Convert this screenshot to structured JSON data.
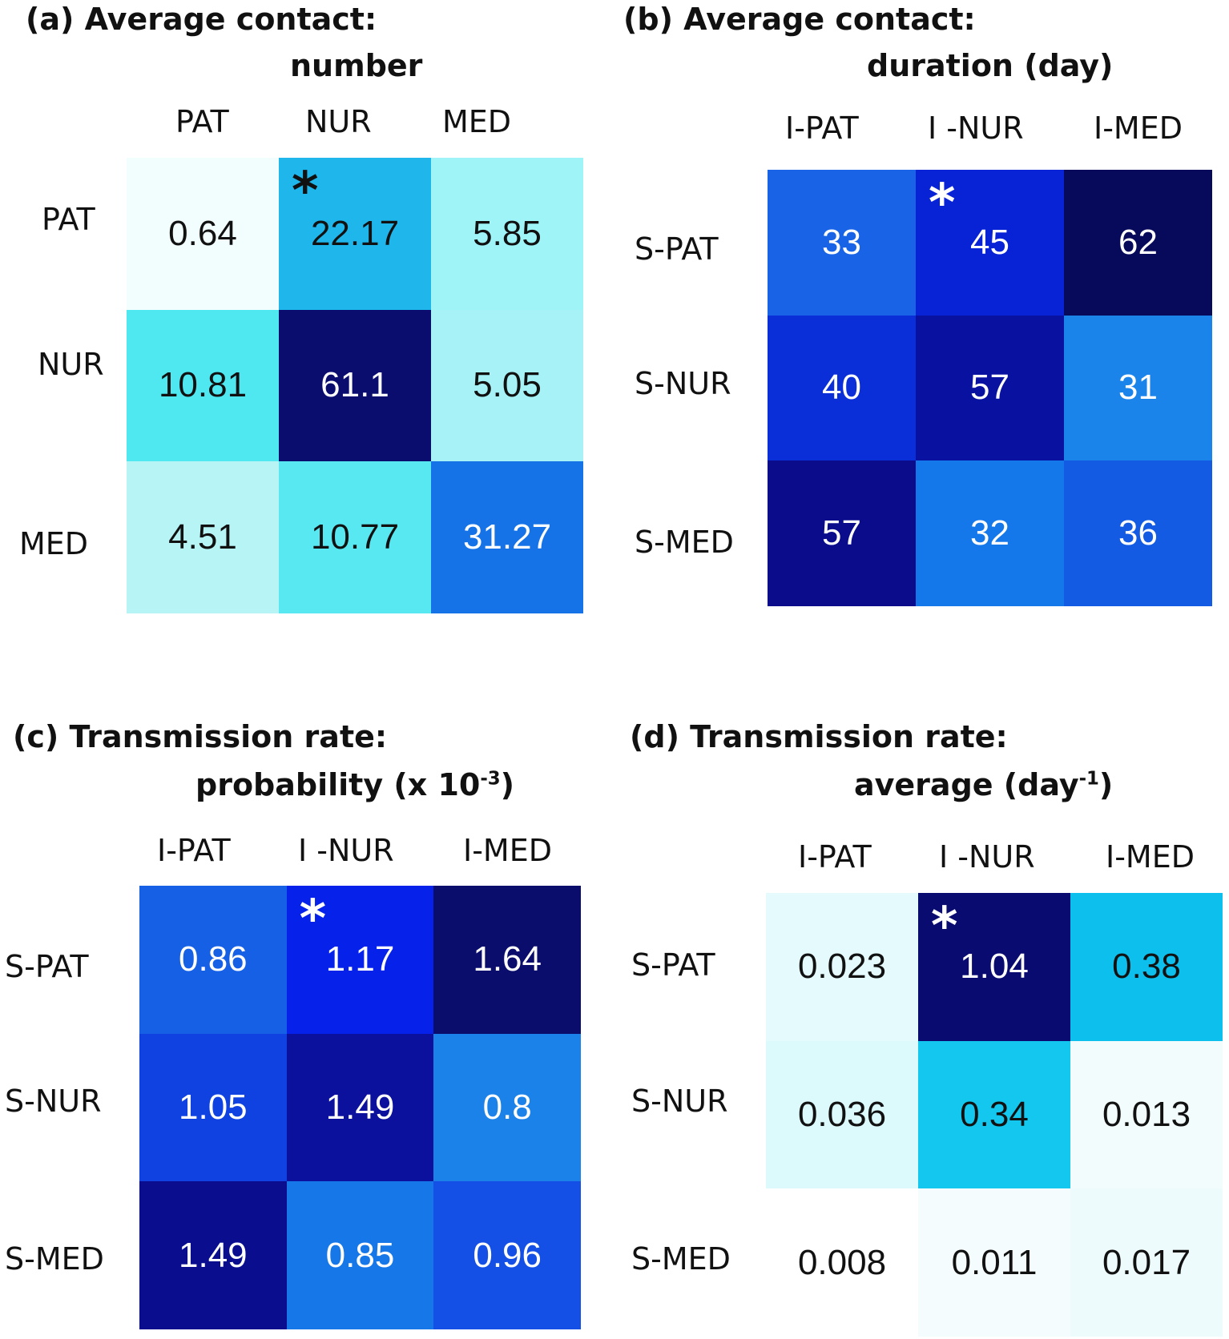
{
  "chart_data": [
    {
      "type": "heatmap",
      "panel": "a",
      "title_line1": "(a) Average contact:",
      "title_line2": "number",
      "col_labels": [
        "PAT",
        "NUR",
        "MED"
      ],
      "row_labels": [
        "PAT",
        "NUR",
        "MED"
      ],
      "values": [
        [
          "0.64",
          "22.17",
          "5.85"
        ],
        [
          "10.81",
          "61.1",
          "5.05"
        ],
        [
          "4.51",
          "10.77",
          "31.27"
        ]
      ],
      "colors": [
        [
          "#f2fdfd",
          "#1fb7eb",
          "#9ff4f8"
        ],
        [
          "#4fe8f1",
          "#0a0d6e",
          "#a6f2f6"
        ],
        [
          "#b7f4f6",
          "#58e8f1",
          "#1573e7"
        ]
      ],
      "text_colors": [
        [
          "#111111",
          "#111111",
          "#111111"
        ],
        [
          "#111111",
          "#ffffff",
          "#111111"
        ],
        [
          "#111111",
          "#111111",
          "#ffffff"
        ]
      ],
      "star": {
        "row": 0,
        "col": 1,
        "symbol": "*",
        "color": "#111111"
      }
    },
    {
      "type": "heatmap",
      "panel": "b",
      "title_line1": "(b) Average contact:",
      "title_line2": "duration (day)",
      "col_labels": [
        "I-PAT",
        "I -NUR",
        "I-MED"
      ],
      "row_labels": [
        "S-PAT",
        "S-NUR",
        "S-MED"
      ],
      "values": [
        [
          "33",
          "45",
          "62"
        ],
        [
          "40",
          "57",
          "31"
        ],
        [
          "57",
          "32",
          "36"
        ]
      ],
      "colors": [
        [
          "#1863e6",
          "#0822d6",
          "#07095a"
        ],
        [
          "#0a2fd9",
          "#0912a0",
          "#1a84ea"
        ],
        [
          "#0a0c8c",
          "#1578ea",
          "#135be2"
        ]
      ],
      "text_colors": [
        [
          "#ffffff",
          "#ffffff",
          "#ffffff"
        ],
        [
          "#ffffff",
          "#ffffff",
          "#ffffff"
        ],
        [
          "#ffffff",
          "#ffffff",
          "#ffffff"
        ]
      ],
      "star": {
        "row": 0,
        "col": 1,
        "symbol": "*",
        "color": "#ffffff"
      }
    },
    {
      "type": "heatmap",
      "panel": "c",
      "title_line1": "(c) Transmission rate:",
      "title_line2_pre": "probability (x 10",
      "title_line2_sup": "-3",
      "title_line2_post": ")",
      "col_labels": [
        "I-PAT",
        "I -NUR",
        "I-MED"
      ],
      "row_labels": [
        "S-PAT",
        "S-NUR",
        "S-MED"
      ],
      "values": [
        [
          "0.86",
          "1.17",
          "1.64"
        ],
        [
          "1.05",
          "1.49",
          "0.8"
        ],
        [
          "1.49",
          "0.85",
          "0.96"
        ]
      ],
      "colors": [
        [
          "#1660e6",
          "#0622ea",
          "#0a0d6b"
        ],
        [
          "#0f42e0",
          "#0b119c",
          "#1a82e8"
        ],
        [
          "#0a0e8e",
          "#1677e9",
          "#1450e6"
        ]
      ],
      "text_colors": [
        [
          "#ffffff",
          "#ffffff",
          "#ffffff"
        ],
        [
          "#ffffff",
          "#ffffff",
          "#ffffff"
        ],
        [
          "#ffffff",
          "#ffffff",
          "#ffffff"
        ]
      ],
      "star": {
        "row": 0,
        "col": 1,
        "symbol": "*",
        "color": "#ffffff"
      }
    },
    {
      "type": "heatmap",
      "panel": "d",
      "title_line1": "(d) Transmission rate:",
      "title_line2_pre": "average (day",
      "title_line2_sup": "-1",
      "title_line2_post": ")",
      "col_labels": [
        "I-PAT",
        "I -NUR",
        "I-MED"
      ],
      "row_labels": [
        "S-PAT",
        "S-NUR",
        "S-MED"
      ],
      "values": [
        [
          "0.023",
          "1.04",
          "0.38"
        ],
        [
          "0.036",
          "0.34",
          "0.013"
        ],
        [
          "0.008",
          "0.011",
          "0.017"
        ]
      ],
      "colors": [
        [
          "#e4fafc",
          "#0a0b70",
          "#0dbfed"
        ],
        [
          "#dcf9fb",
          "#14c7ee",
          "#f2fcfd"
        ],
        [
          "#ffffff",
          "#f5fcfd",
          "#eefbfc"
        ]
      ],
      "text_colors": [
        [
          "#111111",
          "#ffffff",
          "#111111"
        ],
        [
          "#111111",
          "#111111",
          "#111111"
        ],
        [
          "#111111",
          "#111111",
          "#111111"
        ]
      ],
      "star": {
        "row": 0,
        "col": 1,
        "symbol": "*",
        "color": "#ffffff"
      }
    }
  ]
}
